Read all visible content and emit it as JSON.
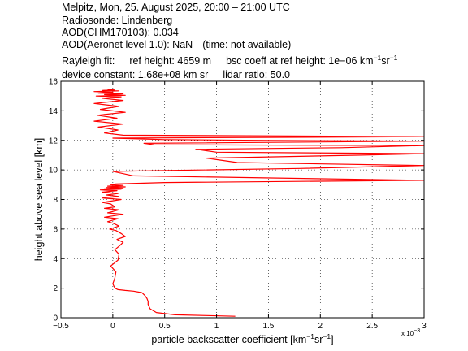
{
  "header": {
    "title": "Melpitz, Mon, 25. August 2025, 20:00 – 21:00 UTC",
    "radiosonde": "Radiosonde: Lindenberg",
    "aod_chm": "AOD(CHM170103): 0.034",
    "aod_aeronet": "AOD(Aeronet level 1.0): NaN",
    "aod_aeronet_time": "(time: not available)",
    "rayleigh_fit_label": "Rayleigh fit:",
    "ref_height": "ref height: 4659 m",
    "bsc_coeff_prefix": "bsc coeff at ref height: 1e−06 km",
    "bsc_unit_exp1": "−1",
    "bsc_unit_mid": "sr",
    "bsc_unit_exp2": "−1",
    "device_constant": "device constant: 1.68e+08 km sr",
    "lidar_ratio": "lidar ratio: 50.0"
  },
  "chart_data": {
    "type": "line",
    "xlabel_prefix": "particle backscatter coefficient [km",
    "xlabel_exp1": "−1",
    "xlabel_mid": "sr",
    "xlabel_exp2": "−1",
    "xlabel_suffix": "]",
    "ylabel": "height above sea level [km]",
    "x_multiplier_base": "x 10",
    "x_multiplier_exp": "−3",
    "xlim": [
      -0.5,
      3.0
    ],
    "ylim": [
      0,
      16
    ],
    "xticks": [
      -0.5,
      0,
      0.5,
      1,
      1.5,
      2,
      2.5,
      3
    ],
    "xtick_labels": [
      "−0.5",
      "0",
      "0.5",
      "1",
      "1.5",
      "2",
      "2.5",
      "3"
    ],
    "yticks": [
      0,
      2,
      4,
      6,
      8,
      10,
      12,
      14,
      16
    ],
    "ytick_labels": [
      "0",
      "2",
      "4",
      "6",
      "8",
      "10",
      "12",
      "14",
      "16"
    ],
    "grid": true,
    "line_color": "#ff0000",
    "series": [
      {
        "x": [
          1.18,
          0.9,
          0.6,
          0.42,
          0.36,
          0.34,
          0.34,
          0.33,
          0.31,
          0.28,
          0.2,
          0.12,
          0.05,
          0.02,
          0.0,
          0.02,
          0.03,
          -0.02,
          0.05,
          0.06,
          0.02,
          0.07,
          0.1,
          0.04,
          0.12,
          0.08,
          0.03,
          -0.03,
          0.06,
          0.0,
          -0.05,
          0.05,
          -0.08,
          0.1,
          -0.05,
          0.06,
          -0.08,
          0.02,
          -0.02,
          -0.1,
          0.08,
          -0.1,
          0.06,
          -0.06,
          0.05,
          -0.1,
          0.04,
          -0.12,
          0.08,
          -0.08,
          0.1,
          -0.06,
          0.12,
          -0.05,
          0.1,
          -0.02,
          0.03,
          0.5,
          3.0,
          0.2,
          0.0,
          1.8,
          3.0,
          1.2,
          0.9,
          2.4,
          3.0,
          1.0,
          0.8,
          2.2,
          3.0,
          0.4,
          0.3,
          3.0,
          1.5,
          0.5,
          0.0,
          3.0,
          0.1,
          -0.08,
          0.05,
          -0.14,
          0.1,
          -0.18,
          0.04,
          -0.15,
          0.12,
          -0.12,
          0.06,
          -0.18,
          0.1,
          -0.1,
          0.08,
          -0.16,
          0.12,
          -0.08,
          0.1,
          -0.14,
          0.0,
          -0.18,
          0.06,
          -0.1,
          0.02,
          -0.05
        ],
        "y": [
          0.1,
          0.15,
          0.2,
          0.35,
          0.6,
          0.9,
          1.1,
          1.3,
          1.5,
          1.7,
          1.8,
          1.85,
          1.9,
          2.0,
          2.3,
          2.7,
          3.1,
          3.5,
          3.9,
          4.3,
          4.6,
          4.9,
          5.1,
          5.3,
          5.5,
          5.7,
          5.9,
          6.0,
          6.2,
          6.4,
          6.5,
          6.7,
          6.8,
          7.0,
          7.1,
          7.3,
          7.4,
          7.5,
          7.7,
          7.8,
          8.0,
          8.1,
          8.2,
          8.3,
          8.4,
          8.5,
          8.6,
          8.65,
          8.7,
          8.72,
          8.75,
          8.8,
          8.85,
          8.9,
          8.95,
          9.0,
          9.05,
          9.15,
          9.3,
          9.6,
          9.9,
          10.1,
          10.3,
          10.5,
          10.8,
          11.0,
          11.1,
          11.2,
          11.4,
          11.5,
          11.65,
          11.7,
          11.8,
          11.95,
          12.0,
          12.05,
          12.15,
          12.25,
          12.35,
          12.5,
          12.7,
          12.9,
          13.1,
          13.3,
          13.5,
          13.7,
          13.9,
          14.1,
          14.3,
          14.5,
          14.7,
          14.85,
          14.95,
          15.0,
          15.05,
          15.1,
          15.15,
          15.2,
          15.25,
          15.3,
          15.35,
          15.38,
          15.4,
          15.45
        ]
      }
    ]
  }
}
